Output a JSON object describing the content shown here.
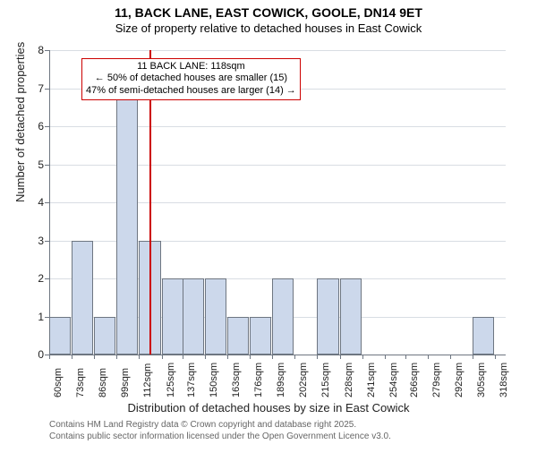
{
  "title": "11, BACK LANE, EAST COWICK, GOOLE, DN14 9ET",
  "subtitle": "Size of property relative to detached houses in East Cowick",
  "y_axis_label": "Number of detached properties",
  "x_axis_label": "Distribution of detached houses by size in East Cowick",
  "annotation": {
    "line1": "11 BACK LANE: 118sqm",
    "line2": "← 50% of detached houses are smaller (15)",
    "line3": "47% of semi-detached houses are larger (14) →"
  },
  "footer": {
    "line1": "Contains HM Land Registry data © Crown copyright and database right 2025.",
    "line2": "Contains public sector information licensed under the Open Government Licence v3.0."
  },
  "chart": {
    "type": "histogram",
    "ylim": [
      0,
      8
    ],
    "ytick_step": 1,
    "x_min": 60,
    "x_max": 324,
    "x_tick_labels": [
      "60sqm",
      "73sqm",
      "86sqm",
      "99sqm",
      "112sqm",
      "125sqm",
      "137sqm",
      "150sqm",
      "163sqm",
      "176sqm",
      "189sqm",
      "202sqm",
      "215sqm",
      "228sqm",
      "241sqm",
      "254sqm",
      "266sqm",
      "279sqm",
      "292sqm",
      "305sqm",
      "318sqm"
    ],
    "bar_fill": "#ccd8eb",
    "bar_stroke": "#6e7681",
    "grid_color": "#d8dde3",
    "marker_value": 118,
    "marker_color": "#cc0000",
    "bars": [
      {
        "x": 60,
        "h": 1
      },
      {
        "x": 73,
        "h": 3
      },
      {
        "x": 86,
        "h": 1
      },
      {
        "x": 99,
        "h": 7
      },
      {
        "x": 112,
        "h": 3
      },
      {
        "x": 125,
        "h": 2
      },
      {
        "x": 137,
        "h": 2
      },
      {
        "x": 150,
        "h": 2
      },
      {
        "x": 163,
        "h": 1
      },
      {
        "x": 176,
        "h": 1
      },
      {
        "x": 189,
        "h": 2
      },
      {
        "x": 202,
        "h": 0
      },
      {
        "x": 215,
        "h": 2
      },
      {
        "x": 228,
        "h": 2
      },
      {
        "x": 241,
        "h": 0
      },
      {
        "x": 254,
        "h": 0
      },
      {
        "x": 266,
        "h": 0
      },
      {
        "x": 279,
        "h": 0
      },
      {
        "x": 292,
        "h": 0
      },
      {
        "x": 305,
        "h": 1
      },
      {
        "x": 318,
        "h": 0
      }
    ]
  }
}
